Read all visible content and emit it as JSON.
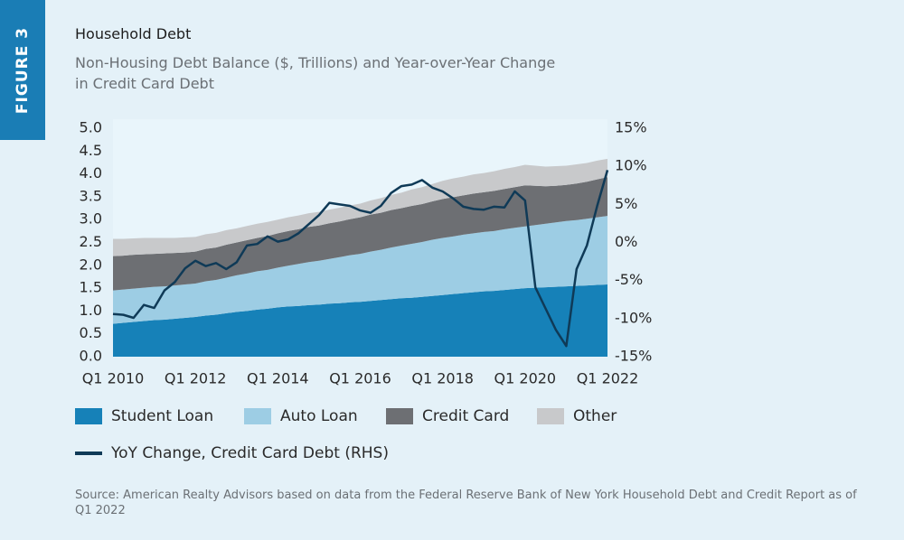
{
  "figure_label": "FIGURE 3",
  "chart_data": {
    "type": "area",
    "stacked": true,
    "title": "Household Debt",
    "subtitle": "Non-Housing Debt Balance ($, Trillions) and Year-over-Year Change in Credit Card Debt",
    "source": "Source: American Realty Advisors based on data from the Federal Reserve Bank of New York Household Debt and Credit Report as of Q1 2022",
    "categories": [
      "Q1 2010",
      null,
      null,
      null,
      null,
      null,
      null,
      null,
      "Q1 2012",
      null,
      null,
      null,
      null,
      null,
      null,
      null,
      "Q1 2014",
      null,
      null,
      null,
      null,
      null,
      null,
      null,
      "Q1 2016",
      null,
      null,
      null,
      null,
      null,
      null,
      null,
      "Q1 2018",
      null,
      null,
      null,
      null,
      null,
      null,
      null,
      "Q1 2020",
      null,
      null,
      null,
      null,
      null,
      null,
      null,
      "Q1 2022"
    ],
    "series": [
      {
        "name": "Student Loan",
        "color": "#1681b8",
        "values": [
          0.72,
          0.74,
          0.76,
          0.78,
          0.8,
          0.81,
          0.83,
          0.85,
          0.87,
          0.9,
          0.92,
          0.95,
          0.98,
          1.0,
          1.03,
          1.05,
          1.08,
          1.1,
          1.11,
          1.13,
          1.14,
          1.16,
          1.17,
          1.19,
          1.2,
          1.22,
          1.24,
          1.26,
          1.28,
          1.29,
          1.31,
          1.33,
          1.35,
          1.37,
          1.39,
          1.41,
          1.43,
          1.44,
          1.46,
          1.48,
          1.5,
          1.51,
          1.52,
          1.53,
          1.54,
          1.55,
          1.56,
          1.57,
          1.58
        ]
      },
      {
        "name": "Auto Loan",
        "color": "#9dcde4",
        "values": [
          0.73,
          0.73,
          0.73,
          0.73,
          0.73,
          0.73,
          0.73,
          0.73,
          0.73,
          0.75,
          0.76,
          0.78,
          0.8,
          0.82,
          0.84,
          0.85,
          0.87,
          0.89,
          0.92,
          0.94,
          0.96,
          0.98,
          1.01,
          1.03,
          1.05,
          1.08,
          1.1,
          1.13,
          1.15,
          1.18,
          1.2,
          1.23,
          1.25,
          1.26,
          1.28,
          1.29,
          1.3,
          1.31,
          1.33,
          1.34,
          1.35,
          1.37,
          1.39,
          1.41,
          1.43,
          1.44,
          1.46,
          1.48,
          1.5
        ]
      },
      {
        "name": "Credit Card",
        "color": "#6d6f73",
        "values": [
          0.75,
          0.74,
          0.74,
          0.73,
          0.72,
          0.72,
          0.71,
          0.7,
          0.7,
          0.71,
          0.71,
          0.72,
          0.72,
          0.73,
          0.73,
          0.74,
          0.75,
          0.76,
          0.76,
          0.77,
          0.77,
          0.78,
          0.78,
          0.79,
          0.8,
          0.81,
          0.81,
          0.82,
          0.82,
          0.83,
          0.83,
          0.84,
          0.85,
          0.86,
          0.86,
          0.87,
          0.87,
          0.88,
          0.88,
          0.89,
          0.9,
          0.86,
          0.82,
          0.8,
          0.79,
          0.8,
          0.81,
          0.83,
          0.85
        ]
      },
      {
        "name": "Other",
        "color": "#c8c9cb",
        "values": [
          0.38,
          0.37,
          0.36,
          0.36,
          0.35,
          0.34,
          0.33,
          0.33,
          0.32,
          0.32,
          0.32,
          0.32,
          0.31,
          0.31,
          0.31,
          0.31,
          0.3,
          0.3,
          0.3,
          0.3,
          0.3,
          0.3,
          0.3,
          0.3,
          0.3,
          0.31,
          0.32,
          0.33,
          0.34,
          0.36,
          0.37,
          0.38,
          0.4,
          0.41,
          0.41,
          0.42,
          0.42,
          0.43,
          0.44,
          0.44,
          0.45,
          0.44,
          0.43,
          0.43,
          0.42,
          0.42,
          0.41,
          0.41,
          0.4
        ]
      },
      {
        "name": "YoY Change, Credit Card Debt (RHS)",
        "type": "line",
        "axis": "y2",
        "color": "#0f3a57",
        "values": [
          -9.4,
          -9.5,
          -9.9,
          -8.2,
          -8.6,
          -6.3,
          -5.2,
          -3.4,
          -2.4,
          -3.1,
          -2.7,
          -3.5,
          -2.6,
          -0.4,
          -0.2,
          0.8,
          0.1,
          0.4,
          1.2,
          2.4,
          3.6,
          5.2,
          5.0,
          4.8,
          4.2,
          3.9,
          4.8,
          6.5,
          7.4,
          7.6,
          8.2,
          7.2,
          6.7,
          5.8,
          4.7,
          4.4,
          4.3,
          4.7,
          4.6,
          6.7,
          5.5,
          -5.9,
          -8.7,
          -11.5,
          -13.6,
          -3.5,
          -0.4,
          4.8,
          9.5
        ]
      }
    ],
    "ylim": [
      0,
      5
    ],
    "yticks": [
      {
        "value": 0,
        "label": "0.0"
      },
      0.5,
      {
        "value": 1,
        "label": "1.0"
      },
      1.5,
      {
        "value": 2,
        "label": "2.0"
      },
      2.5,
      {
        "value": 3,
        "label": "3.0"
      },
      3.5,
      {
        "value": 4,
        "label": "4.0"
      },
      4.5,
      {
        "value": 5,
        "label": "5.0"
      }
    ],
    "y2lim": [
      -15,
      15
    ],
    "y2ticks": [
      {
        "value": -15,
        "label": "-15%"
      },
      {
        "value": -10,
        "label": "-10%"
      },
      {
        "value": -5,
        "label": "-5%"
      },
      {
        "value": 0,
        "label": "0%"
      },
      {
        "value": 5,
        "label": "5%"
      },
      {
        "value": 10,
        "label": "10%"
      },
      {
        "value": 15,
        "label": "15%"
      }
    ],
    "grid": false
  }
}
